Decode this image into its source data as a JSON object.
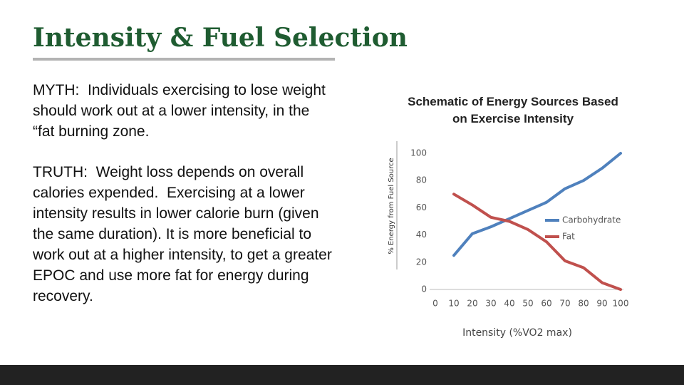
{
  "title": "Intensity & Fuel Selection",
  "myth": "MYTH:  Individuals exercising to lose weight should work out at a lower intensity, in the “fat burning zone.",
  "truth": "TRUTH:  Weight loss depends on overall calories expended.  Exercising at a lower intensity results in lower calorie burn (given the same duration). It is more beneficial to work out at a higher intensity, to get a greater EPOC and use more fat for energy during recovery.",
  "chart_data": {
    "type": "line",
    "title": "Schematic of Energy Sources Based on Exercise Intensity",
    "x_label": "Intensity (%VO2 max)",
    "y_label": "% Energy from Fuel Source",
    "x": [
      10,
      20,
      30,
      40,
      50,
      60,
      70,
      80,
      90,
      100
    ],
    "series": [
      {
        "name": "Carbohydrate",
        "color": "#4f81bd",
        "values": [
          25,
          41,
          46,
          52,
          58,
          64,
          74,
          80,
          89,
          100
        ]
      },
      {
        "name": "Fat",
        "color": "#c0504d",
        "values": [
          70,
          62,
          53,
          50,
          44,
          35,
          21,
          16,
          5,
          0
        ]
      }
    ],
    "xlim": [
      0,
      100
    ],
    "xticks": [
      0,
      10,
      20,
      30,
      40,
      50,
      60,
      70,
      80,
      90,
      100
    ],
    "ylim": [
      0,
      100
    ],
    "yticks": [
      0,
      20,
      40,
      60,
      80,
      100
    ],
    "legend": "right",
    "grid": false
  }
}
